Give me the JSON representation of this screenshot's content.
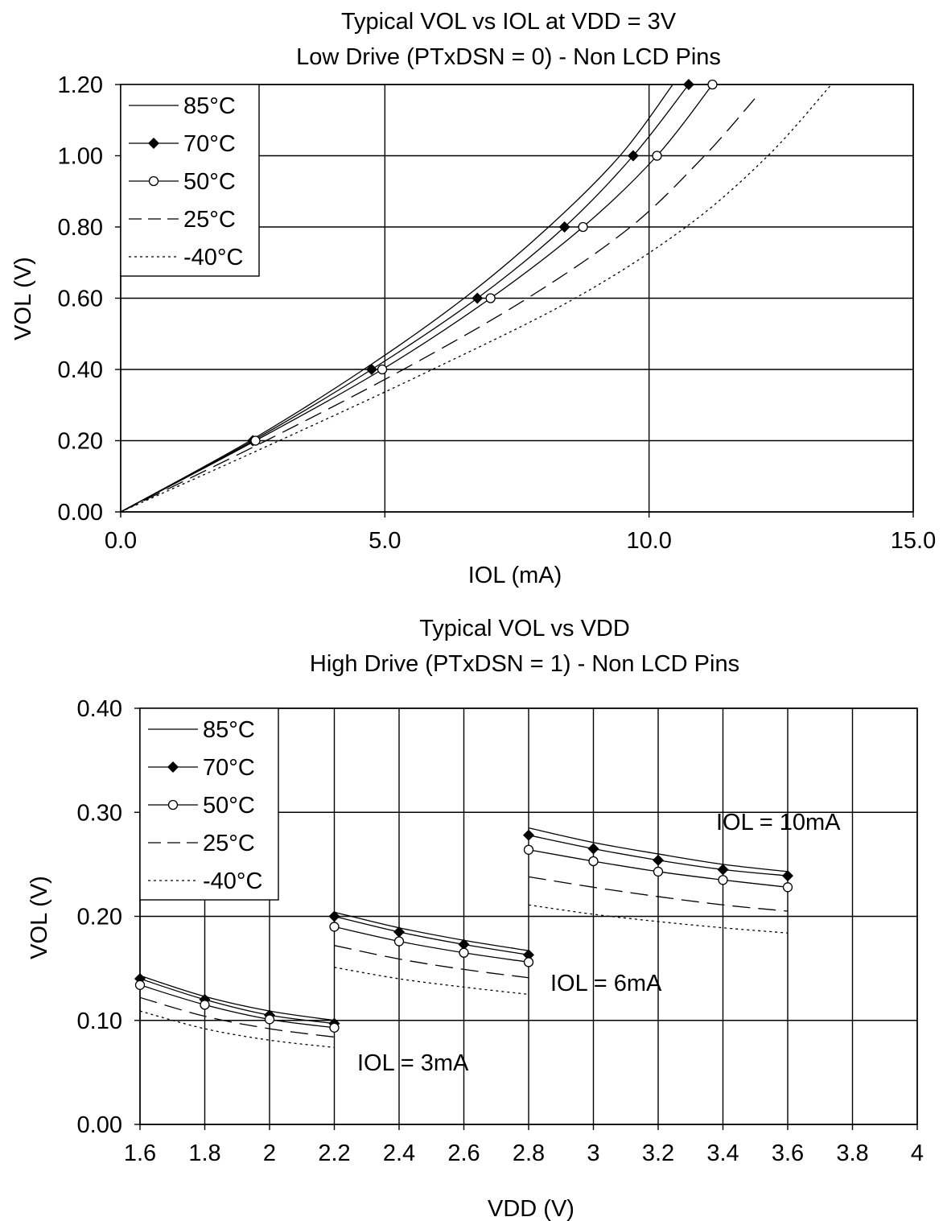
{
  "chart_data": [
    {
      "type": "line",
      "title": "Typical VOL vs IOL at VDD = 3V",
      "subtitle": "Low Drive (PTxDSN = 0) - Non LCD Pins",
      "xlabel": "IOL (mA)",
      "ylabel": "VOL (V)",
      "xlim": [
        0,
        15
      ],
      "ylim": [
        0,
        1.2
      ],
      "x_ticks": [
        "0.0",
        "5.0",
        "10.0",
        "15.0"
      ],
      "y_ticks": [
        "0.00",
        "0.20",
        "0.40",
        "0.60",
        "0.80",
        "1.00",
        "1.20"
      ],
      "grid": true,
      "legend": "top-left",
      "series": [
        {
          "name": "85°C",
          "style": "solid",
          "marker": "none",
          "points": [
            [
              0,
              0
            ],
            [
              2.45,
              0.2
            ],
            [
              4.6,
              0.4
            ],
            [
              6.5,
              0.6
            ],
            [
              8.1,
              0.8
            ],
            [
              9.45,
              1.0
            ],
            [
              10.45,
              1.2
            ]
          ]
        },
        {
          "name": "70°C",
          "style": "solid",
          "marker": "diamond",
          "points": [
            [
              0,
              0
            ],
            [
              2.5,
              0.2
            ],
            [
              4.75,
              0.4
            ],
            [
              6.75,
              0.6
            ],
            [
              8.4,
              0.8
            ],
            [
              9.7,
              1.0
            ],
            [
              10.75,
              1.2
            ]
          ]
        },
        {
          "name": "50°C",
          "style": "solid",
          "marker": "circle",
          "points": [
            [
              0,
              0
            ],
            [
              2.55,
              0.2
            ],
            [
              4.95,
              0.4
            ],
            [
              7.0,
              0.6
            ],
            [
              8.75,
              0.8
            ],
            [
              10.15,
              1.0
            ],
            [
              11.2,
              1.2
            ]
          ]
        },
        {
          "name": "25°C",
          "style": "dash",
          "marker": "none",
          "points": [
            [
              0,
              0
            ],
            [
              2.75,
              0.2
            ],
            [
              5.35,
              0.4
            ],
            [
              7.7,
              0.6
            ],
            [
              9.65,
              0.8
            ],
            [
              11.05,
              1.0
            ],
            [
              12.0,
              1.16
            ]
          ]
        },
        {
          "name": "-40°C",
          "style": "dot",
          "marker": "none",
          "points": [
            [
              0,
              0
            ],
            [
              3.0,
              0.2
            ],
            [
              5.9,
              0.4
            ],
            [
              8.6,
              0.6
            ],
            [
              10.7,
              0.8
            ],
            [
              12.25,
              1.0
            ],
            [
              13.45,
              1.2
            ]
          ]
        }
      ],
      "annotations": []
    },
    {
      "type": "line",
      "title": "Typical VOL vs VDD",
      "subtitle": "High Drive (PTxDSN = 1) - Non LCD Pins",
      "xlabel": "VDD (V)",
      "ylabel": "VOL (V)",
      "xlim": [
        1.6,
        4
      ],
      "ylim": [
        0,
        0.4
      ],
      "x_ticks": [
        "1.6",
        "1.8",
        "2",
        "2.2",
        "2.4",
        "2.6",
        "2.8",
        "3",
        "3.2",
        "3.4",
        "3.6",
        "3.8",
        "4"
      ],
      "y_ticks": [
        "0.00",
        "0.10",
        "0.20",
        "0.30",
        "0.40"
      ],
      "grid": true,
      "legend": "top-left",
      "groups": [
        {
          "label": "IOL = 3mA",
          "x": [
            1.6,
            1.8,
            2.0,
            2.2
          ],
          "series": {
            "85°C": [
              0.143,
              0.123,
              0.109,
              0.1
            ],
            "70°C": [
              0.14,
              0.12,
              0.105,
              0.097
            ],
            "50°C": [
              0.134,
              0.115,
              0.101,
              0.093
            ],
            "25°C": [
              0.122,
              0.104,
              0.092,
              0.084
            ],
            "-40°C": [
              0.109,
              0.092,
              0.081,
              0.074
            ]
          }
        },
        {
          "label": "IOL = 6mA",
          "x": [
            2.2,
            2.4,
            2.6,
            2.8
          ],
          "series": {
            "85°C": [
              0.204,
              0.189,
              0.177,
              0.167
            ],
            "70°C": [
              0.2,
              0.185,
              0.173,
              0.163
            ],
            "50°C": [
              0.19,
              0.176,
              0.165,
              0.156
            ],
            "25°C": [
              0.172,
              0.159,
              0.149,
              0.141
            ],
            "-40°C": [
              0.151,
              0.14,
              0.132,
              0.125
            ]
          }
        },
        {
          "label": "IOL = 10mA",
          "x": [
            2.8,
            3.0,
            3.2,
            3.4,
            3.6
          ],
          "series": {
            "85°C": [
              0.285,
              0.271,
              0.26,
              0.25,
              0.243
            ],
            "70°C": [
              0.278,
              0.265,
              0.254,
              0.245,
              0.239
            ],
            "50°C": [
              0.264,
              0.253,
              0.243,
              0.235,
              0.228
            ],
            "25°C": [
              0.238,
              0.228,
              0.219,
              0.211,
              0.205
            ],
            "-40°C": [
              0.211,
              0.202,
              0.195,
              0.189,
              0.184
            ]
          }
        }
      ],
      "series_styles": [
        {
          "name": "85°C",
          "style": "solid",
          "marker": "none"
        },
        {
          "name": "70°C",
          "style": "solid",
          "marker": "diamond"
        },
        {
          "name": "50°C",
          "style": "solid",
          "marker": "circle"
        },
        {
          "name": "25°C",
          "style": "dash",
          "marker": "none"
        },
        {
          "name": "-40°C",
          "style": "dot",
          "marker": "none"
        }
      ]
    }
  ]
}
